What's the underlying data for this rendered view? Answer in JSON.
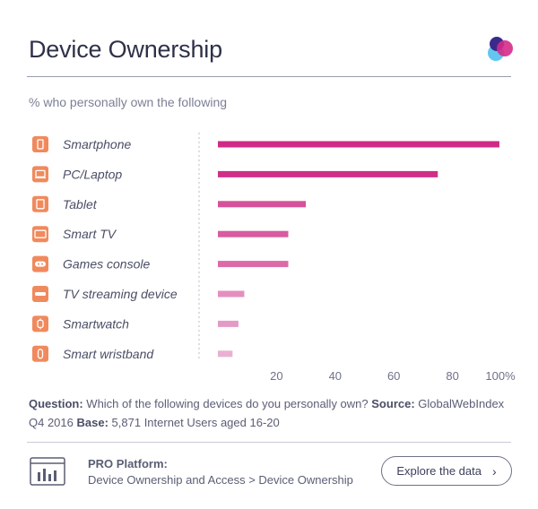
{
  "header": {
    "title": "Device Ownership"
  },
  "colors": {
    "icon_bg": "#f08a5d",
    "axis_text": "#6e7288",
    "label_text": "#4a4e66"
  },
  "chart_data": {
    "type": "bar",
    "orientation": "horizontal",
    "title": "Device Ownership",
    "subtitle": "% who personally own the following",
    "categories": [
      "Smartphone",
      "PC/Laptop",
      "Tablet",
      "Smart TV",
      "Games console",
      "TV streaming device",
      "Smartwatch",
      "Smart wristband"
    ],
    "values": [
      96,
      75,
      30,
      24,
      24,
      9,
      7,
      5
    ],
    "bar_colors": [
      "#cf2a86",
      "#d02f88",
      "#d6519a",
      "#d95ba0",
      "#dc6aa8",
      "#e48fbf",
      "#e59ac5",
      "#eab0d2"
    ],
    "icons": [
      "smartphone-icon",
      "laptop-icon",
      "tablet-icon",
      "tv-icon",
      "gamepad-icon",
      "streaming-stick-icon",
      "smartwatch-icon",
      "wristband-icon"
    ],
    "xlim": [
      0,
      100
    ],
    "x_ticks": [
      "20",
      "40",
      "60",
      "80",
      "100%"
    ],
    "x_tick_values": [
      20,
      40,
      60,
      80,
      100
    ],
    "grid": false
  },
  "footer": {
    "question_label": "Question:",
    "question_text": "Which of the following devices do you personally own?",
    "source_label": "Source:",
    "source_text": "GlobalWebIndex Q4 2016",
    "base_label": "Base:",
    "base_text": "5,871 Internet Users aged 16-20"
  },
  "pro": {
    "label": "PRO Platform:",
    "path": "Device Ownership and Access > Device Ownership",
    "explore_label": "Explore the data",
    "explore_icon": "chevron-right-icon"
  }
}
